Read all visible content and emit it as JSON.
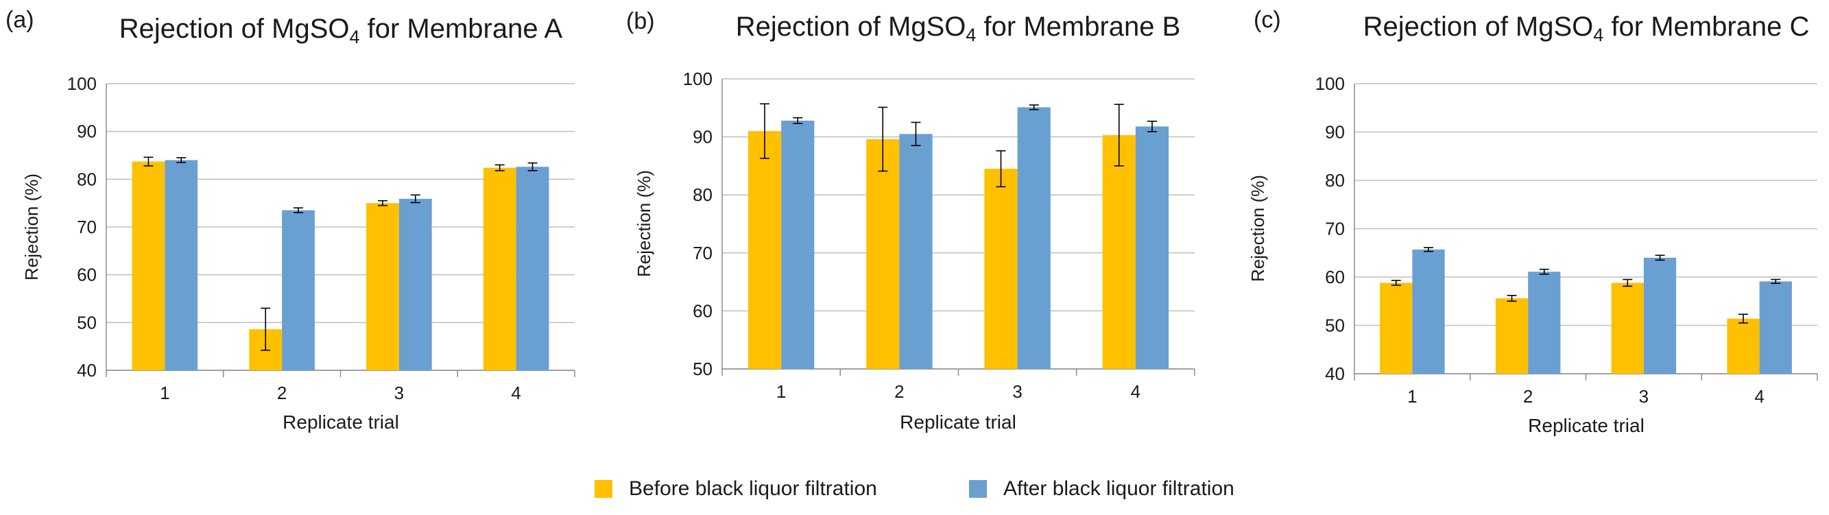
{
  "legend": {
    "before_label": "Before black liquor filtration",
    "after_label": "After black liquor filtration",
    "before_color": "#FFC000",
    "after_color": "#6A9FD2"
  },
  "chart_data": [
    {
      "type": "bar",
      "panel_label": "(a)",
      "title_prefix": "Rejection of MgSO",
      "title_sub": "4",
      "title_suffix": " for Membrane A",
      "xlabel": "Replicate trial",
      "ylabel": "Rejection (%)",
      "ylim": [
        40,
        100
      ],
      "yticks": [
        40,
        50,
        60,
        70,
        80,
        90,
        100
      ],
      "categories": [
        "1",
        "2",
        "3",
        "4"
      ],
      "series": [
        {
          "name": "Before black liquor filtration",
          "values": [
            83.7,
            48.6,
            75.0,
            82.4
          ],
          "errors": [
            0.9,
            4.4,
            0.5,
            0.6
          ]
        },
        {
          "name": "After black liquor filtration",
          "values": [
            84.0,
            73.5,
            75.9,
            82.6
          ],
          "errors": [
            0.5,
            0.5,
            0.8,
            0.8
          ]
        }
      ]
    },
    {
      "type": "bar",
      "panel_label": "(b)",
      "title_prefix": "Rejection of MgSO",
      "title_sub": "4",
      "title_suffix": " for Membrane B",
      "xlabel": "Replicate trial",
      "ylabel": "Rejection (%)",
      "ylim": [
        50,
        100
      ],
      "yticks": [
        50,
        60,
        70,
        80,
        90,
        100
      ],
      "categories": [
        "1",
        "2",
        "3",
        "4"
      ],
      "series": [
        {
          "name": "Before black liquor filtration",
          "values": [
            91.0,
            89.6,
            84.5,
            90.3
          ],
          "errors": [
            4.7,
            5.5,
            3.1,
            5.3
          ]
        },
        {
          "name": "After black liquor filtration",
          "values": [
            92.8,
            90.5,
            95.1,
            91.8
          ],
          "errors": [
            0.5,
            2.0,
            0.4,
            0.9
          ]
        }
      ]
    },
    {
      "type": "bar",
      "panel_label": "(c)",
      "title_prefix": "Rejection of MgSO",
      "title_sub": "4",
      "title_suffix": " for Membrane C",
      "xlabel": "Replicate trial",
      "ylabel": "Rejection (%)",
      "ylim": [
        40,
        100
      ],
      "yticks": [
        40,
        50,
        60,
        70,
        80,
        90,
        100
      ],
      "categories": [
        "1",
        "2",
        "3",
        "4"
      ],
      "series": [
        {
          "name": "Before black liquor filtration",
          "values": [
            58.8,
            55.6,
            58.8,
            51.4
          ],
          "errors": [
            0.5,
            0.6,
            0.7,
            0.9
          ]
        },
        {
          "name": "After black liquor filtration",
          "values": [
            65.7,
            61.1,
            64.0,
            59.1
          ],
          "errors": [
            0.4,
            0.5,
            0.5,
            0.4
          ]
        }
      ]
    }
  ]
}
